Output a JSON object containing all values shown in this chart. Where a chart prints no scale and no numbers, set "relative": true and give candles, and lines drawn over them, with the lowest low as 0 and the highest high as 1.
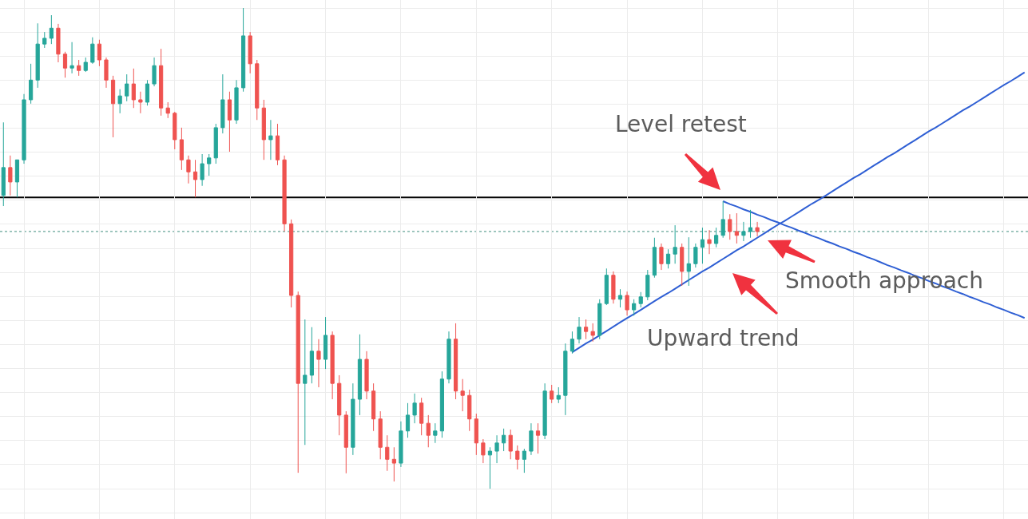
{
  "chart_data": {
    "type": "candlestick",
    "relative": true,
    "grid": true,
    "categories": [
      null,
      null,
      null,
      null,
      null,
      null,
      null,
      null,
      null,
      null,
      null,
      null,
      null,
      null,
      null,
      null,
      null,
      null,
      null,
      null,
      null,
      null,
      null,
      null,
      null,
      null,
      null,
      null,
      null,
      null,
      null,
      null,
      null,
      null,
      null,
      null,
      null,
      null,
      null,
      null,
      null,
      null,
      null,
      null,
      null,
      null,
      null,
      null,
      null,
      null,
      null,
      null,
      null,
      null,
      null,
      null,
      null,
      null,
      null,
      null,
      null,
      null,
      null,
      null,
      null,
      null,
      null,
      null,
      null,
      null,
      null,
      null,
      null,
      null,
      null,
      null,
      null,
      null,
      null,
      null,
      null,
      null,
      null,
      null,
      null,
      null,
      null,
      null,
      null,
      null,
      null,
      null,
      null,
      null,
      null,
      null,
      null,
      null,
      null,
      null,
      null,
      null,
      null,
      null,
      null,
      null,
      null,
      null,
      null,
      null,
      null,
      null,
      null,
      null,
      null,
      null,
      null,
      null,
      null,
      null,
      null,
      null,
      null,
      null,
      null,
      null,
      null,
      null,
      null,
      null,
      null,
      null,
      null,
      null,
      null,
      null,
      null,
      null,
      null,
      null,
      null,
      null,
      null,
      null,
      null,
      null,
      null,
      null,
      null,
      null
    ],
    "ohlc": [
      [
        0.61,
        0.762,
        0.588,
        0.668
      ],
      [
        0.668,
        0.693,
        0.61,
        0.638
      ],
      [
        0.638,
        0.684,
        0.606,
        0.684
      ],
      [
        0.684,
        0.821,
        0.676,
        0.809
      ],
      [
        0.809,
        0.884,
        0.801,
        0.85
      ],
      [
        0.85,
        0.968,
        0.834,
        0.925
      ],
      [
        0.925,
        0.95,
        0.917,
        0.937
      ],
      [
        0.937,
        0.985,
        0.925,
        0.958
      ],
      [
        0.958,
        0.967,
        0.887,
        0.904
      ],
      [
        0.904,
        0.909,
        0.855,
        0.875
      ],
      [
        0.875,
        0.929,
        0.864,
        0.88
      ],
      [
        0.88,
        0.892,
        0.859,
        0.87
      ],
      [
        0.87,
        0.897,
        0.867,
        0.887
      ],
      [
        0.887,
        0.939,
        0.884,
        0.925
      ],
      [
        0.925,
        0.934,
        0.879,
        0.892
      ],
      [
        0.892,
        0.897,
        0.834,
        0.85
      ],
      [
        0.85,
        0.859,
        0.731,
        0.801
      ],
      [
        0.801,
        0.831,
        0.781,
        0.817
      ],
      [
        0.817,
        0.862,
        0.806,
        0.842
      ],
      [
        0.842,
        0.874,
        0.792,
        0.809
      ],
      [
        0.809,
        0.826,
        0.781,
        0.804
      ],
      [
        0.804,
        0.85,
        0.797,
        0.842
      ],
      [
        0.842,
        0.897,
        0.837,
        0.88
      ],
      [
        0.88,
        0.915,
        0.776,
        0.792
      ],
      [
        0.792,
        0.804,
        0.771,
        0.781
      ],
      [
        0.781,
        0.784,
        0.706,
        0.726
      ],
      [
        0.726,
        0.751,
        0.663,
        0.684
      ],
      [
        0.684,
        0.693,
        0.635,
        0.659
      ],
      [
        0.659,
        0.684,
        0.606,
        0.643
      ],
      [
        0.643,
        0.696,
        0.63,
        0.676
      ],
      [
        0.676,
        0.696,
        0.651,
        0.688
      ],
      [
        0.688,
        0.759,
        0.676,
        0.751
      ],
      [
        0.751,
        0.862,
        0.739,
        0.809
      ],
      [
        0.809,
        0.826,
        0.701,
        0.767
      ],
      [
        0.767,
        0.85,
        0.759,
        0.834
      ],
      [
        0.834,
        1,
        0.826,
        0.942
      ],
      [
        0.942,
        0.95,
        0.864,
        0.884
      ],
      [
        0.884,
        0.892,
        0.767,
        0.792
      ],
      [
        0.792,
        0.809,
        0.684,
        0.726
      ],
      [
        0.726,
        0.767,
        0.684,
        0.734
      ],
      [
        0.734,
        0.759,
        0.673,
        0.684
      ],
      [
        0.684,
        0.693,
        0.535,
        0.551
      ],
      [
        0.551,
        0.56,
        0.377,
        0.402
      ],
      [
        0.402,
        0.41,
        0.033,
        0.219
      ],
      [
        0.219,
        0.352,
        0.091,
        0.236
      ],
      [
        0.236,
        0.336,
        0.219,
        0.286
      ],
      [
        0.286,
        0.311,
        0.211,
        0.269
      ],
      [
        0.269,
        0.357,
        0.249,
        0.319
      ],
      [
        0.319,
        0.327,
        0.186,
        0.219
      ],
      [
        0.219,
        0.236,
        0.111,
        0.153
      ],
      [
        0.153,
        0.161,
        0.032,
        0.086
      ],
      [
        0.086,
        0.219,
        0.07,
        0.186
      ],
      [
        0.186,
        0.321,
        0.153,
        0.269
      ],
      [
        0.269,
        0.286,
        0.186,
        0.203
      ],
      [
        0.203,
        0.219,
        0.12,
        0.145
      ],
      [
        0.145,
        0.161,
        0.061,
        0.086
      ],
      [
        0.086,
        0.111,
        0.037,
        0.061
      ],
      [
        0.061,
        0.086,
        0.015,
        0.053
      ],
      [
        0.053,
        0.14,
        0.045,
        0.12
      ],
      [
        0.12,
        0.178,
        0.106,
        0.153
      ],
      [
        0.153,
        0.198,
        0.136,
        0.178
      ],
      [
        0.178,
        0.189,
        0.111,
        0.136
      ],
      [
        0.136,
        0.153,
        0.086,
        0.111
      ],
      [
        0.111,
        0.136,
        0.095,
        0.12
      ],
      [
        0.12,
        0.244,
        0.106,
        0.228
      ],
      [
        0.228,
        0.327,
        0.219,
        0.311
      ],
      [
        0.311,
        0.344,
        0.186,
        0.203
      ],
      [
        0.203,
        0.228,
        0.161,
        0.194
      ],
      [
        0.194,
        0.206,
        0.12,
        0.145
      ],
      [
        0.145,
        0.156,
        0.07,
        0.095
      ],
      [
        0.095,
        0.103,
        0.053,
        0.07
      ],
      [
        0.07,
        0.086,
        0,
        0.078
      ],
      [
        0.078,
        0.111,
        0.053,
        0.095
      ],
      [
        0.095,
        0.125,
        0.078,
        0.111
      ],
      [
        0.111,
        0.123,
        0.061,
        0.078
      ],
      [
        0.078,
        0.09,
        0.04,
        0.061
      ],
      [
        0.061,
        0.083,
        0.033,
        0.078
      ],
      [
        0.078,
        0.136,
        0.07,
        0.12
      ],
      [
        0.12,
        0.136,
        0.073,
        0.111
      ],
      [
        0.111,
        0.219,
        0.103,
        0.203
      ],
      [
        0.203,
        0.216,
        0.178,
        0.186
      ],
      [
        0.186,
        0.211,
        0.178,
        0.194
      ],
      [
        0.194,
        0.302,
        0.153,
        0.286
      ],
      [
        0.286,
        0.327,
        0.281,
        0.311
      ],
      [
        0.311,
        0.357,
        0.302,
        0.336
      ],
      [
        0.336,
        0.352,
        0.311,
        0.327
      ],
      [
        0.327,
        0.344,
        0.306,
        0.319
      ],
      [
        0.319,
        0.394,
        0.311,
        0.385
      ],
      [
        0.385,
        0.458,
        0.382,
        0.444
      ],
      [
        0.444,
        0.452,
        0.385,
        0.394
      ],
      [
        0.394,
        0.415,
        0.377,
        0.402
      ],
      [
        0.402,
        0.41,
        0.36,
        0.372
      ],
      [
        0.372,
        0.394,
        0.36,
        0.385
      ],
      [
        0.385,
        0.409,
        0.377,
        0.399
      ],
      [
        0.399,
        0.455,
        0.392,
        0.444
      ],
      [
        0.444,
        0.522,
        0.439,
        0.502
      ],
      [
        0.502,
        0.51,
        0.455,
        0.468
      ],
      [
        0.468,
        0.498,
        0.458,
        0.488
      ],
      [
        0.488,
        0.548,
        0.468,
        0.502
      ],
      [
        0.502,
        0.51,
        0.422,
        0.452
      ],
      [
        0.452,
        0.523,
        0.422,
        0.468
      ],
      [
        0.468,
        0.51,
        0.46,
        0.502
      ],
      [
        0.502,
        0.543,
        0.468,
        0.518
      ],
      [
        0.518,
        0.538,
        0.488,
        0.51
      ],
      [
        0.51,
        0.543,
        0.502,
        0.527
      ],
      [
        0.527,
        0.598,
        0.522,
        0.56
      ],
      [
        0.56,
        0.571,
        0.518,
        0.535
      ],
      [
        0.535,
        0.573,
        0.51,
        0.527
      ],
      [
        0.527,
        0.555,
        0.515,
        0.535
      ],
      [
        0.535,
        0.58,
        0.522,
        0.543
      ],
      [
        0.543,
        0.555,
        0.525,
        0.535
      ],
      null,
      null,
      null,
      null,
      null,
      null,
      null,
      null,
      null,
      null,
      null,
      null,
      null,
      null,
      null,
      null,
      null,
      null,
      null,
      null,
      null,
      null,
      null,
      null,
      null,
      null,
      null,
      null,
      null,
      null,
      null,
      null,
      null,
      null,
      null,
      null,
      null,
      null,
      null
    ],
    "series": [
      {
        "type": "line",
        "color": "#2f5fd4",
        "values": [
          null,
          null,
          null,
          null,
          null,
          null,
          null,
          null,
          null,
          null,
          null,
          null,
          null,
          null,
          null,
          null,
          null,
          null,
          null,
          null,
          null,
          null,
          null,
          null,
          null,
          null,
          null,
          null,
          null,
          null,
          null,
          null,
          null,
          null,
          null,
          null,
          null,
          null,
          null,
          null,
          null,
          null,
          null,
          null,
          null,
          null,
          null,
          null,
          null,
          null,
          null,
          null,
          null,
          null,
          null,
          null,
          null,
          null,
          null,
          null,
          null,
          null,
          null,
          null,
          null,
          null,
          null,
          null,
          null,
          null,
          null,
          null,
          null,
          null,
          null,
          null,
          null,
          null,
          null,
          null,
          null,
          null,
          null,
          0.284,
          0.293,
          0.302,
          0.31,
          0.319,
          0.328,
          0.337,
          0.346,
          0.355,
          0.363,
          0.372,
          0.381,
          0.39,
          0.399,
          0.407,
          0.416,
          0.425,
          0.434,
          0.443,
          0.452,
          0.46,
          0.469,
          0.478,
          0.487,
          0.496,
          0.504,
          0.513,
          0.522,
          0.531,
          0.54,
          0.549,
          0.557,
          0.566,
          0.575,
          0.584,
          0.593,
          0.601,
          0.61,
          0.619,
          0.628,
          0.637,
          0.646,
          0.654,
          0.663,
          0.672,
          0.681,
          0.69,
          0.698,
          0.707,
          0.716,
          0.725,
          0.734,
          0.743,
          0.751,
          0.76,
          0.769,
          0.778,
          0.787,
          0.795,
          0.804,
          0.813,
          0.822,
          0.831,
          0.84,
          0.848,
          0.857,
          0.866
        ]
      },
      {
        "type": "line",
        "color": "#2f5fd4",
        "values": [
          null,
          null,
          null,
          null,
          null,
          null,
          null,
          null,
          null,
          null,
          null,
          null,
          null,
          null,
          null,
          null,
          null,
          null,
          null,
          null,
          null,
          null,
          null,
          null,
          null,
          null,
          null,
          null,
          null,
          null,
          null,
          null,
          null,
          null,
          null,
          null,
          null,
          null,
          null,
          null,
          null,
          null,
          null,
          null,
          null,
          null,
          null,
          null,
          null,
          null,
          null,
          null,
          null,
          null,
          null,
          null,
          null,
          null,
          null,
          null,
          null,
          null,
          null,
          null,
          null,
          null,
          null,
          null,
          null,
          null,
          null,
          null,
          null,
          null,
          null,
          null,
          null,
          null,
          null,
          null,
          null,
          null,
          null,
          null,
          null,
          null,
          null,
          null,
          null,
          null,
          null,
          null,
          null,
          null,
          null,
          null,
          null,
          null,
          null,
          null,
          null,
          null,
          null,
          null,
          null,
          0.598,
          0.592,
          0.587,
          0.581,
          0.576,
          0.57,
          0.565,
          0.559,
          0.554,
          0.548,
          0.543,
          0.537,
          0.532,
          0.526,
          0.521,
          0.515,
          0.51,
          0.504,
          0.499,
          0.493,
          0.488,
          0.482,
          0.477,
          0.471,
          0.465,
          0.46,
          0.454,
          0.449,
          0.443,
          0.438,
          0.432,
          0.427,
          0.421,
          0.416,
          0.41,
          0.405,
          0.399,
          0.394,
          0.388,
          0.383,
          0.377,
          0.372,
          0.366,
          0.361,
          0.355
        ]
      }
    ],
    "ref_lines": [
      {
        "axis": "y",
        "value": 0.606,
        "color": "#000000"
      },
      {
        "axis": "y",
        "value": 0.535,
        "color": "#3f8f7e",
        "line_style": "dotted"
      }
    ],
    "annotations": [
      "Level retest",
      "Upward trend",
      "Smooth approach"
    ]
  }
}
